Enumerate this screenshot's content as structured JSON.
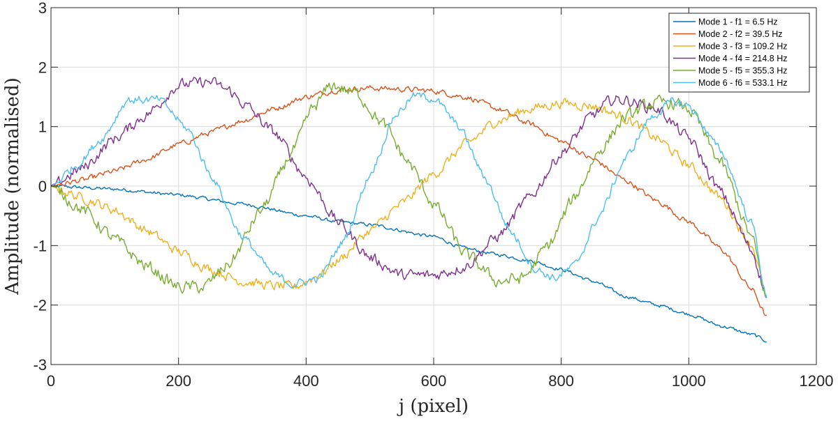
{
  "chart_data": {
    "type": "line",
    "title": "",
    "xlabel": "j (pixel)",
    "ylabel": "Amplitude (normalised)",
    "xlim": [
      0,
      1200
    ],
    "ylim": [
      -3,
      3
    ],
    "xticks": [
      0,
      200,
      400,
      600,
      800,
      1000,
      1200
    ],
    "yticks": [
      -3,
      -2,
      -1,
      0,
      1,
      2,
      3
    ],
    "grid": true,
    "legend_position": "top-right",
    "series": [
      {
        "name": "Mode 1 - f1 = 6.5 Hz",
        "color": "#0072BD",
        "x": [
          0,
          100,
          200,
          300,
          400,
          450,
          500,
          600,
          650,
          700,
          750,
          800,
          850,
          900,
          950,
          1000,
          1050,
          1100,
          1122
        ],
        "y": [
          0,
          -0.05,
          -0.15,
          -0.3,
          -0.5,
          -0.6,
          -0.65,
          -0.85,
          -1.05,
          -1.15,
          -1.25,
          -1.4,
          -1.6,
          -1.85,
          -2.0,
          -2.15,
          -2.35,
          -2.5,
          -2.6
        ],
        "noise": 0.025
      },
      {
        "name": "Mode 2 - f2 = 39.5 Hz",
        "color": "#D95319",
        "x": [
          0,
          50,
          100,
          150,
          200,
          250,
          300,
          350,
          400,
          450,
          500,
          550,
          600,
          650,
          700,
          750,
          800,
          850,
          900,
          950,
          1000,
          1050,
          1100,
          1122
        ],
        "y": [
          0,
          0.1,
          0.25,
          0.45,
          0.7,
          0.9,
          1.1,
          1.3,
          1.5,
          1.62,
          1.65,
          1.63,
          1.6,
          1.5,
          1.3,
          1.05,
          0.75,
          0.45,
          0.1,
          -0.25,
          -0.6,
          -1.05,
          -1.75,
          -2.2
        ],
        "noise": 0.04
      },
      {
        "name": "Mode 3 - f3 = 109.2 Hz",
        "color": "#EDB120",
        "x": [
          0,
          50,
          100,
          150,
          200,
          250,
          300,
          350,
          380,
          420,
          450,
          500,
          550,
          600,
          650,
          700,
          750,
          800,
          850,
          900,
          950,
          1000,
          1050,
          1100,
          1122
        ],
        "y": [
          0,
          -0.2,
          -0.4,
          -0.75,
          -1.1,
          -1.4,
          -1.6,
          -1.68,
          -1.7,
          -1.5,
          -1.25,
          -0.75,
          -0.3,
          0.2,
          0.7,
          1.1,
          1.3,
          1.4,
          1.35,
          1.15,
          0.8,
          0.35,
          -0.2,
          -1.0,
          -1.9
        ],
        "noise": 0.07
      },
      {
        "name": "Mode 4 - f4 = 214.8 Hz",
        "color": "#7E2F8E",
        "x": [
          0,
          50,
          100,
          150,
          200,
          250,
          280,
          300,
          350,
          400,
          450,
          500,
          550,
          600,
          650,
          700,
          750,
          800,
          850,
          880,
          900,
          950,
          1000,
          1050,
          1100,
          1122
        ],
        "y": [
          0,
          0.3,
          0.8,
          1.2,
          1.7,
          1.75,
          1.6,
          1.4,
          0.9,
          0.15,
          -0.6,
          -1.2,
          -1.5,
          -1.5,
          -1.35,
          -0.85,
          -0.2,
          0.55,
          1.2,
          1.45,
          1.45,
          1.3,
          0.8,
          -0.1,
          -1.1,
          -1.85
        ],
        "noise": 0.08
      },
      {
        "name": "Mode 5 - f5 = 355.3 Hz",
        "color": "#77AC30",
        "x": [
          0,
          50,
          100,
          150,
          200,
          240,
          280,
          330,
          380,
          410,
          440,
          480,
          520,
          560,
          600,
          650,
          700,
          740,
          780,
          820,
          860,
          900,
          940,
          970,
          1000,
          1050,
          1100,
          1122
        ],
        "y": [
          0,
          -0.4,
          -0.9,
          -1.35,
          -1.7,
          -1.7,
          -1.3,
          -0.4,
          0.6,
          1.3,
          1.7,
          1.55,
          1.05,
          0.4,
          -0.3,
          -1.15,
          -1.6,
          -1.55,
          -1.0,
          -0.2,
          0.6,
          1.15,
          1.38,
          1.4,
          1.3,
          0.4,
          -0.9,
          -1.9
        ],
        "noise": 0.09
      },
      {
        "name": "Mode 6 - f6 = 533.1 Hz",
        "color": "#4DBEEE",
        "x": [
          0,
          40,
          80,
          120,
          170,
          215,
          250,
          300,
          350,
          380,
          420,
          460,
          500,
          540,
          570,
          600,
          640,
          680,
          720,
          760,
          790,
          820,
          860,
          900,
          940,
          975,
          1000,
          1050,
          1100,
          1122
        ],
        "y": [
          0,
          0.35,
          0.8,
          1.45,
          1.45,
          0.95,
          0.2,
          -0.85,
          -1.5,
          -1.65,
          -1.55,
          -0.9,
          0.2,
          1.2,
          1.52,
          1.48,
          1.0,
          0.15,
          -0.75,
          -1.4,
          -1.55,
          -1.35,
          -0.5,
          0.45,
          1.15,
          1.42,
          1.35,
          0.6,
          -0.65,
          -1.9
        ],
        "noise": 0.06
      }
    ]
  }
}
